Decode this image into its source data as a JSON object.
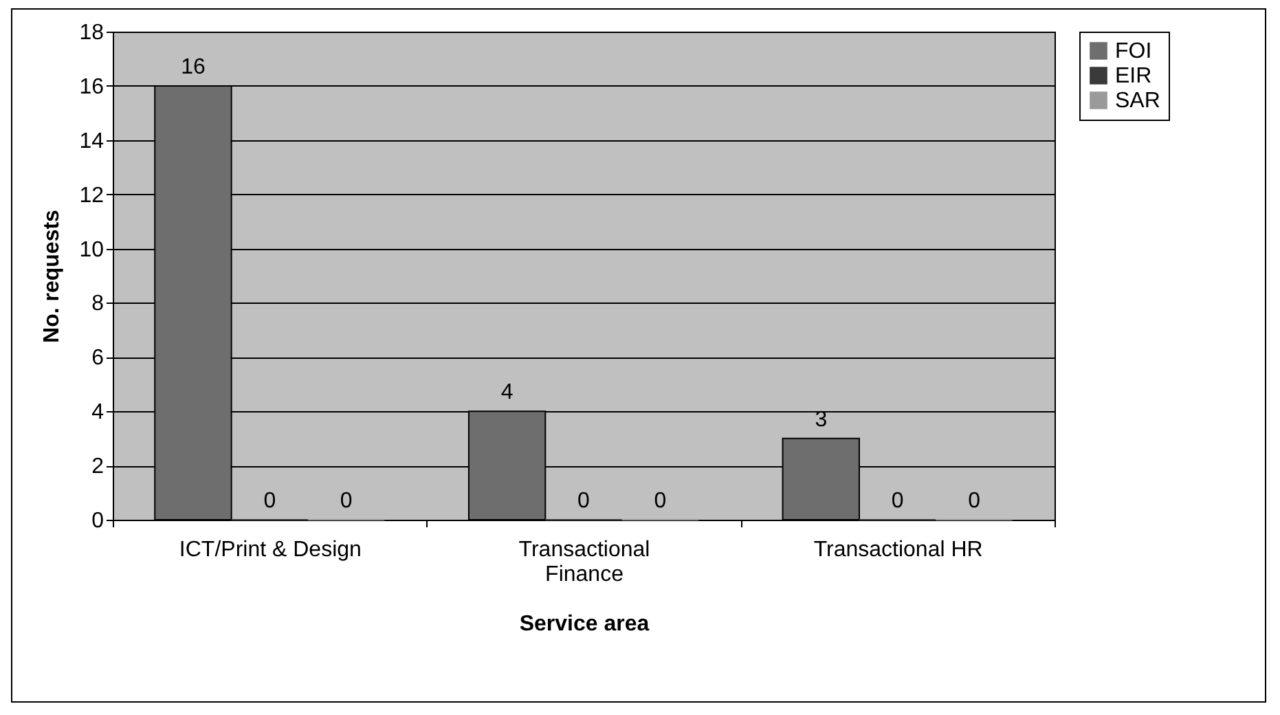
{
  "chart_data": {
    "type": "bar",
    "xlabel": "Service area",
    "ylabel": "No. requests",
    "categories": [
      "ICT/Print & Design",
      "Transactional Finance",
      "Transactional HR"
    ],
    "series": [
      {
        "name": "FOI",
        "color": "#6e6e6e",
        "values": [
          16,
          4,
          3
        ]
      },
      {
        "name": "EIR",
        "color": "#3a3a3a",
        "values": [
          0,
          0,
          0
        ]
      },
      {
        "name": "SAR",
        "color": "#9a9a9a",
        "values": [
          0,
          0,
          0
        ]
      }
    ],
    "ylim": [
      0,
      18
    ],
    "yticks": [
      0,
      2,
      4,
      6,
      8,
      10,
      12,
      14,
      16,
      18
    ],
    "grid": "y",
    "legend": "right",
    "data_labels": true
  }
}
